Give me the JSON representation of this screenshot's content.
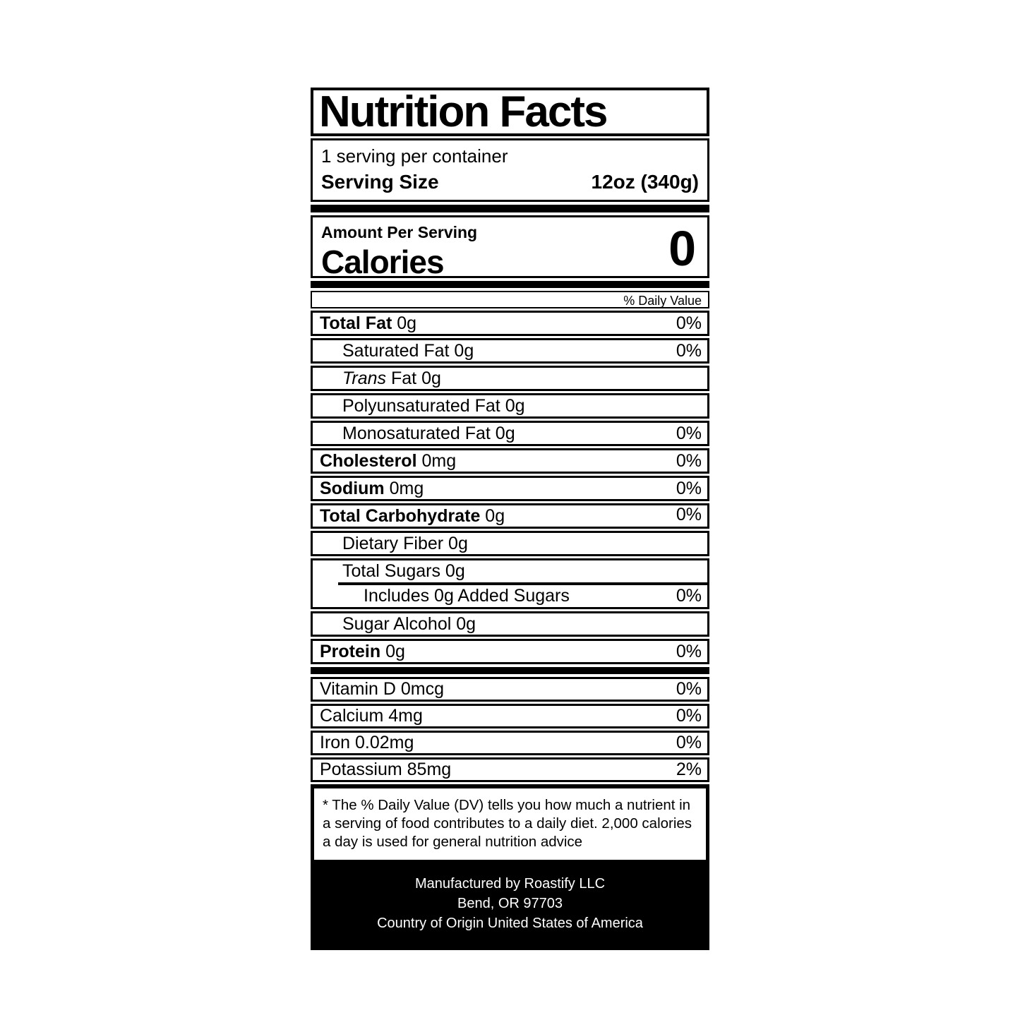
{
  "colors": {
    "ink": "#000000",
    "paper": "#ffffff"
  },
  "label": {
    "title": "Nutrition Facts",
    "servings_per_container": "1 serving per container",
    "serving_size": {
      "label": "Serving Size",
      "value": "12oz (340g)"
    },
    "amount_per_serving": "Amount Per Serving",
    "calories": {
      "label": "Calories",
      "value": "0"
    },
    "daily_value_header": "% Daily Value",
    "rows": [
      {
        "bold": "Total Fat",
        "italic": "",
        "text": " 0g",
        "dv": "0%"
      },
      {
        "bold": "",
        "italic": "",
        "text": "Saturated Fat 0g",
        "dv": "0%"
      },
      {
        "bold": "",
        "italic": "Trans",
        "text": " Fat 0g",
        "dv": ""
      },
      {
        "bold": "",
        "italic": "",
        "text": "Polyunsaturated Fat 0g",
        "dv": ""
      },
      {
        "bold": "",
        "italic": "",
        "text": "Monosaturated Fat 0g",
        "dv": "0%"
      },
      {
        "bold": "Cholesterol",
        "italic": "",
        "text": " 0mg",
        "dv": "0%"
      },
      {
        "bold": "Sodium",
        "italic": "",
        "text": " 0mg",
        "dv": "0%"
      },
      {
        "bold": "Total Carbohydrate",
        "italic": "",
        "text": " 0g",
        "dv": "0%"
      },
      {
        "bold": "",
        "italic": "",
        "text": "Dietary Fiber 0g",
        "dv": ""
      }
    ],
    "sugars": {
      "total_text": "Total Sugars 0g",
      "added_text": "Includes 0g Added Sugars",
      "added_dv": "0%"
    },
    "rows2": [
      {
        "bold": "",
        "italic": "",
        "text": "Sugar Alcohol 0g",
        "dv": ""
      },
      {
        "bold": "Protein",
        "italic": "",
        "text": " 0g",
        "dv": "0%"
      }
    ],
    "vitamins": [
      {
        "text": "Vitamin D 0mcg",
        "dv": "0%"
      },
      {
        "text": "Calcium 4mg",
        "dv": "0%"
      },
      {
        "text": "Iron 0.02mg",
        "dv": "0%"
      },
      {
        "text": "Potassium 85mg",
        "dv": "2%"
      }
    ],
    "footnote": "* The % Daily Value (DV) tells you how much a nutrient in a serving of food contributes to a daily diet. 2,000 calories a day is used for general nutrition advice",
    "footer_lines": [
      "Manufactured by Roastify LLC",
      "Bend, OR 97703",
      "Country of Origin United States of America"
    ]
  }
}
